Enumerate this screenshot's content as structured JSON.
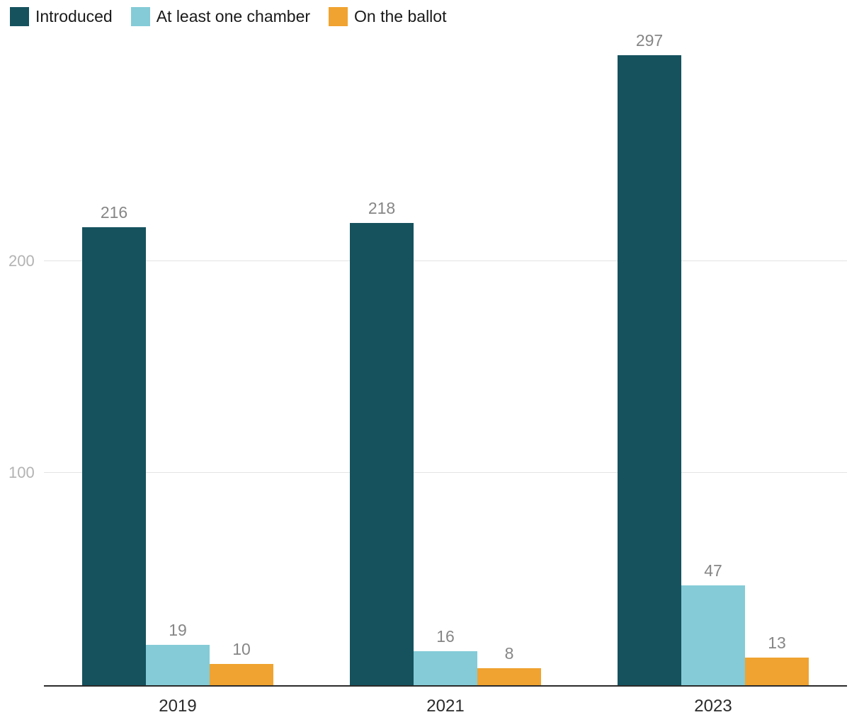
{
  "chart_data": {
    "type": "bar",
    "title": "",
    "categories": [
      "2019",
      "2021",
      "2023"
    ],
    "series": [
      {
        "name": "Introduced",
        "color": "#15525E",
        "values": [
          216,
          218,
          297
        ]
      },
      {
        "name": "At least one chamber",
        "color": "#84CBD7",
        "values": [
          19,
          16,
          47
        ]
      },
      {
        "name": "On the ballot",
        "color": "#F0A330",
        "values": [
          10,
          8,
          13
        ]
      }
    ],
    "yticks": [
      100,
      200
    ],
    "ylim": [
      0,
      323
    ],
    "xlabel": "",
    "ylabel": "",
    "grid": "horizontal",
    "legend_position": "top-left",
    "colors": {
      "gridline": "#e4e4e4",
      "axis_line": "#2b2b2b",
      "value_label": "#868686",
      "ytick_label": "#b3b3b3",
      "xtick_label": "#2b2b2b"
    }
  }
}
